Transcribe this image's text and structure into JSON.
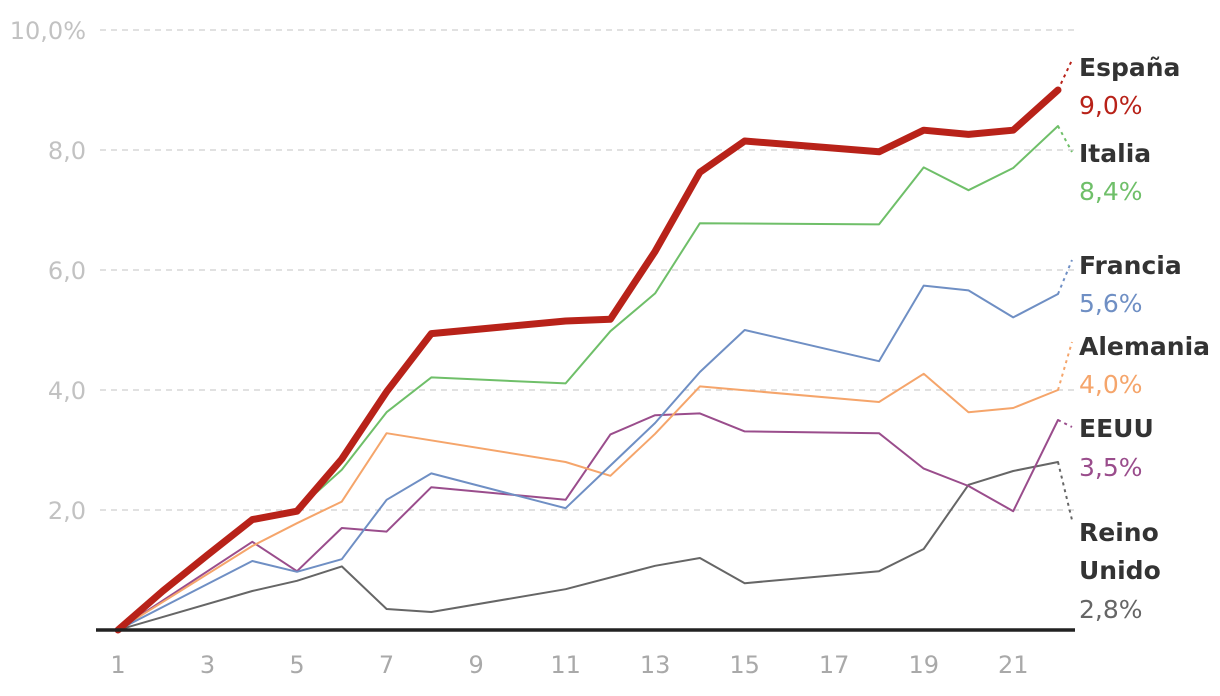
{
  "chart_data": {
    "type": "line",
    "title": "",
    "xlabel": "",
    "ylabel": "",
    "xlim": [
      1,
      22
    ],
    "ylim": [
      0,
      10
    ],
    "grid": true,
    "x_ticks": [
      "1",
      "3",
      "5",
      "7",
      "9",
      "11",
      "13",
      "15",
      "17",
      "19",
      "21"
    ],
    "y_ticks": [
      "2,0",
      "4,0",
      "6,0",
      "8,0",
      "10,0%"
    ],
    "series": [
      {
        "name": "Reino Unido",
        "label_lines": [
          "Reino",
          "Unido"
        ],
        "value_label": "2,8%",
        "color": "#666666",
        "x": [
          1,
          4,
          5,
          6,
          7,
          8,
          11,
          13,
          14,
          15,
          18,
          19,
          20,
          21,
          22
        ],
        "y": [
          0.0,
          0.65,
          0.82,
          1.06,
          0.35,
          0.3,
          0.68,
          1.07,
          1.2,
          0.78,
          0.98,
          1.35,
          2.42,
          2.65,
          2.8
        ]
      },
      {
        "name": "EEUU",
        "label_lines": [
          "EEUU"
        ],
        "value_label": "3,5%",
        "color": "#9a4d8c",
        "x": [
          1,
          4,
          5,
          6,
          7,
          8,
          11,
          12,
          13,
          14,
          15,
          18,
          19,
          20,
          21,
          22
        ],
        "y": [
          0.0,
          1.47,
          0.98,
          1.7,
          1.64,
          2.38,
          2.17,
          3.26,
          3.58,
          3.61,
          3.31,
          3.28,
          2.69,
          2.4,
          1.98,
          3.5
        ]
      },
      {
        "name": "Alemania",
        "label_lines": [
          "Alemania"
        ],
        "value_label": "4,0%",
        "color": "#f5a56b",
        "x": [
          1,
          4,
          5,
          6,
          7,
          11,
          12,
          13,
          14,
          18,
          19,
          20,
          21,
          22
        ],
        "y": [
          0.0,
          1.4,
          1.78,
          2.14,
          3.28,
          2.8,
          2.57,
          3.27,
          4.06,
          3.8,
          4.27,
          3.63,
          3.7,
          4.0
        ]
      },
      {
        "name": "Francia",
        "label_lines": [
          "Francia"
        ],
        "value_label": "5,6%",
        "color": "#6f8fc4",
        "x": [
          1,
          4,
          5,
          6,
          7,
          8,
          11,
          13,
          14,
          15,
          18,
          19,
          20,
          21,
          22
        ],
        "y": [
          0.0,
          1.15,
          0.97,
          1.18,
          2.17,
          2.61,
          2.03,
          3.45,
          4.3,
          5.0,
          4.48,
          5.74,
          5.66,
          5.21,
          5.6
        ]
      },
      {
        "name": "Italia",
        "label_lines": [
          "Italia"
        ],
        "value_label": "8,4%",
        "color": "#6fbf69",
        "x": [
          1,
          4,
          5,
          6,
          7,
          8,
          11,
          12,
          13,
          14,
          18,
          19,
          20,
          21,
          22
        ],
        "y": [
          0.0,
          1.84,
          2.0,
          2.67,
          3.63,
          4.21,
          4.11,
          4.98,
          5.61,
          6.78,
          6.76,
          7.71,
          7.33,
          7.7,
          8.4
        ]
      },
      {
        "name": "España",
        "label_lines": [
          "España"
        ],
        "value_label": "9,0%",
        "color": "#b82219",
        "x": [
          1,
          2,
          3,
          4,
          5,
          6,
          7,
          8,
          11,
          12,
          13,
          14,
          15,
          18,
          19,
          20,
          21,
          22
        ],
        "y": [
          0.0,
          0.65,
          1.25,
          1.84,
          1.98,
          2.85,
          3.97,
          4.94,
          5.15,
          5.18,
          6.31,
          7.63,
          8.15,
          7.97,
          8.33,
          8.26,
          8.33,
          9.0
        ]
      }
    ]
  }
}
